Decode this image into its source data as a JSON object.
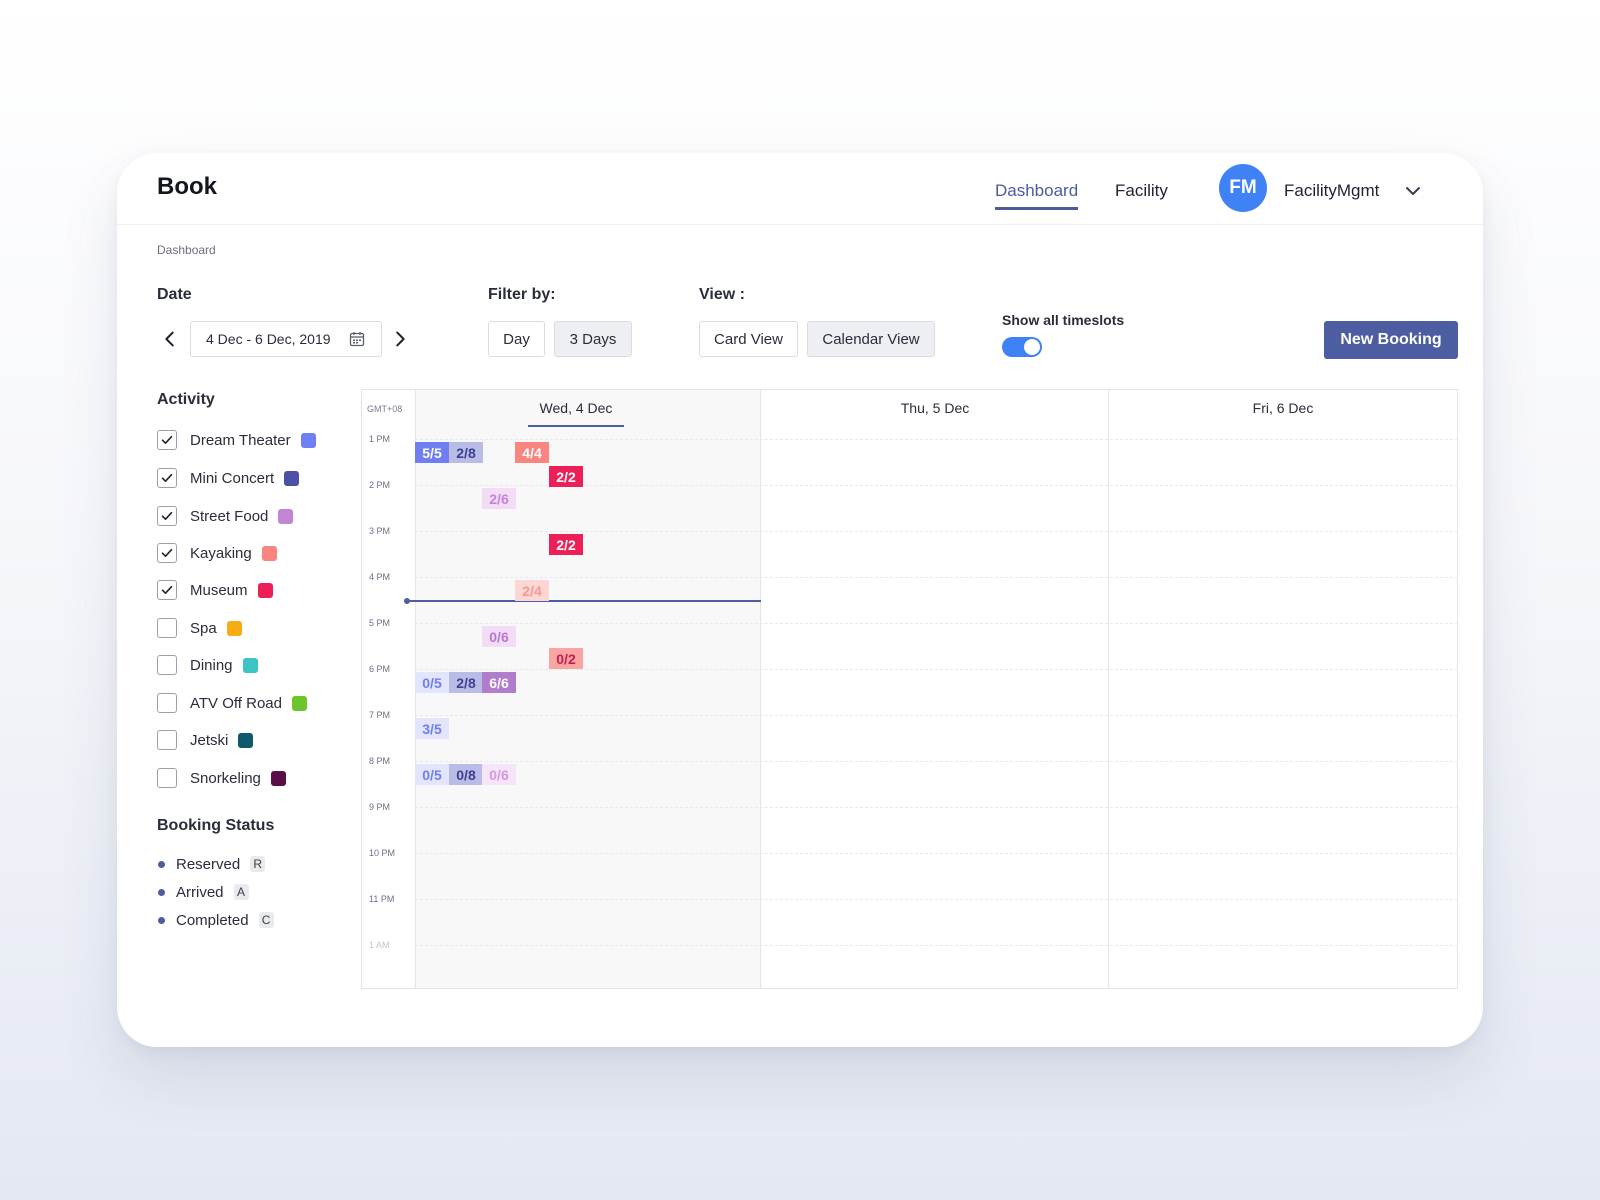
{
  "header": {
    "brand": "Book",
    "nav": [
      {
        "label": "Dashboard"
      },
      {
        "label": "Facility"
      }
    ],
    "avatar_initials": "FM",
    "user_name": "FacilityMgmt"
  },
  "breadcrumb": "Dashboard",
  "controls": {
    "date_label": "Date",
    "date_range": "4 Dec - 6 Dec, 2019",
    "filter_label": "Filter by:",
    "filter_options": [
      "Day",
      "3 Days"
    ],
    "filter_selected": "3 Days",
    "view_label": "View :",
    "view_options": [
      "Card View",
      "Calendar View"
    ],
    "view_selected": "Calendar View",
    "timeslots_label": "Show all timeslots",
    "timeslots_on": true,
    "new_booking": "New Booking"
  },
  "activity": {
    "title": "Activity",
    "items": [
      {
        "label": "Dream Theater",
        "checked": true,
        "color": "#6f7ff2"
      },
      {
        "label": "Mini Concert",
        "checked": true,
        "color": "#4c50a8"
      },
      {
        "label": "Street Food",
        "checked": true,
        "color": "#c384d6"
      },
      {
        "label": "Kayaking",
        "checked": true,
        "color": "#f98480"
      },
      {
        "label": "Museum",
        "checked": true,
        "color": "#ec1f56"
      },
      {
        "label": "Spa",
        "checked": false,
        "color": "#f7ac13"
      },
      {
        "label": "Dining",
        "checked": false,
        "color": "#3cc3c3"
      },
      {
        "label": "ATV Off Road",
        "checked": false,
        "color": "#6cc52b"
      },
      {
        "label": "Jetski",
        "checked": false,
        "color": "#0e5a68"
      },
      {
        "label": "Snorkeling",
        "checked": false,
        "color": "#5a0f48"
      }
    ]
  },
  "booking_status": {
    "title": "Booking Status",
    "items": [
      {
        "label": "Reserved",
        "key": "R"
      },
      {
        "label": "Arrived",
        "key": "A"
      },
      {
        "label": "Completed",
        "key": "C"
      }
    ]
  },
  "calendar": {
    "timezone": "GMT+08",
    "days": [
      "Wed, 4 Dec",
      "Thu, 5 Dec",
      "Fri, 6 Dec"
    ],
    "hours": [
      "1 PM",
      "2 PM",
      "3 PM",
      "4 PM",
      "5 PM",
      "6 PM",
      "7 PM",
      "8 PM",
      "9 PM",
      "10 PM",
      "11 PM",
      "1 AM"
    ],
    "slots": [
      {
        "text": "5/5",
        "bg": "#6f7ff2",
        "fg": "#ffffff"
      },
      {
        "text": "2/8",
        "bg": "#b8bce6",
        "fg": "#3c4190"
      },
      {
        "text": "4/4",
        "bg": "#f98480",
        "fg": "#ffffff"
      },
      {
        "text": "2/2",
        "bg": "#ec1f56",
        "fg": "#ffffff"
      },
      {
        "text": "2/6",
        "bg": "#f3dcf6",
        "fg": "#c384d6"
      },
      {
        "text": "2/2",
        "bg": "#ec1f56",
        "fg": "#ffffff"
      },
      {
        "text": "2/4",
        "bg": "#fdd7d4",
        "fg": "#f39a94"
      },
      {
        "text": "0/6",
        "bg": "#f3dcf6",
        "fg": "#b678cc"
      },
      {
        "text": "0/2",
        "bg": "#f9a5a3",
        "fg": "#c81d4c"
      },
      {
        "text": "0/5",
        "bg": "#e2e5fc",
        "fg": "#6f7ff2"
      },
      {
        "text": "2/8",
        "bg": "#b8bce6",
        "fg": "#3c4190"
      },
      {
        "text": "6/6",
        "bg": "#b07ccc",
        "fg": "#ffffff"
      },
      {
        "text": "3/5",
        "bg": "#e2e5fc",
        "fg": "#6f7ff2"
      },
      {
        "text": "0/5",
        "bg": "#e2e5fc",
        "fg": "#6f7ff2"
      },
      {
        "text": "0/8",
        "bg": "#b8bce6",
        "fg": "#3c4190"
      },
      {
        "text": "0/6",
        "bg": "#f6e4f8",
        "fg": "#d29ade"
      }
    ]
  },
  "colors": {
    "accent": "#4c5ea1",
    "primary_blue": "#3f82f6"
  }
}
